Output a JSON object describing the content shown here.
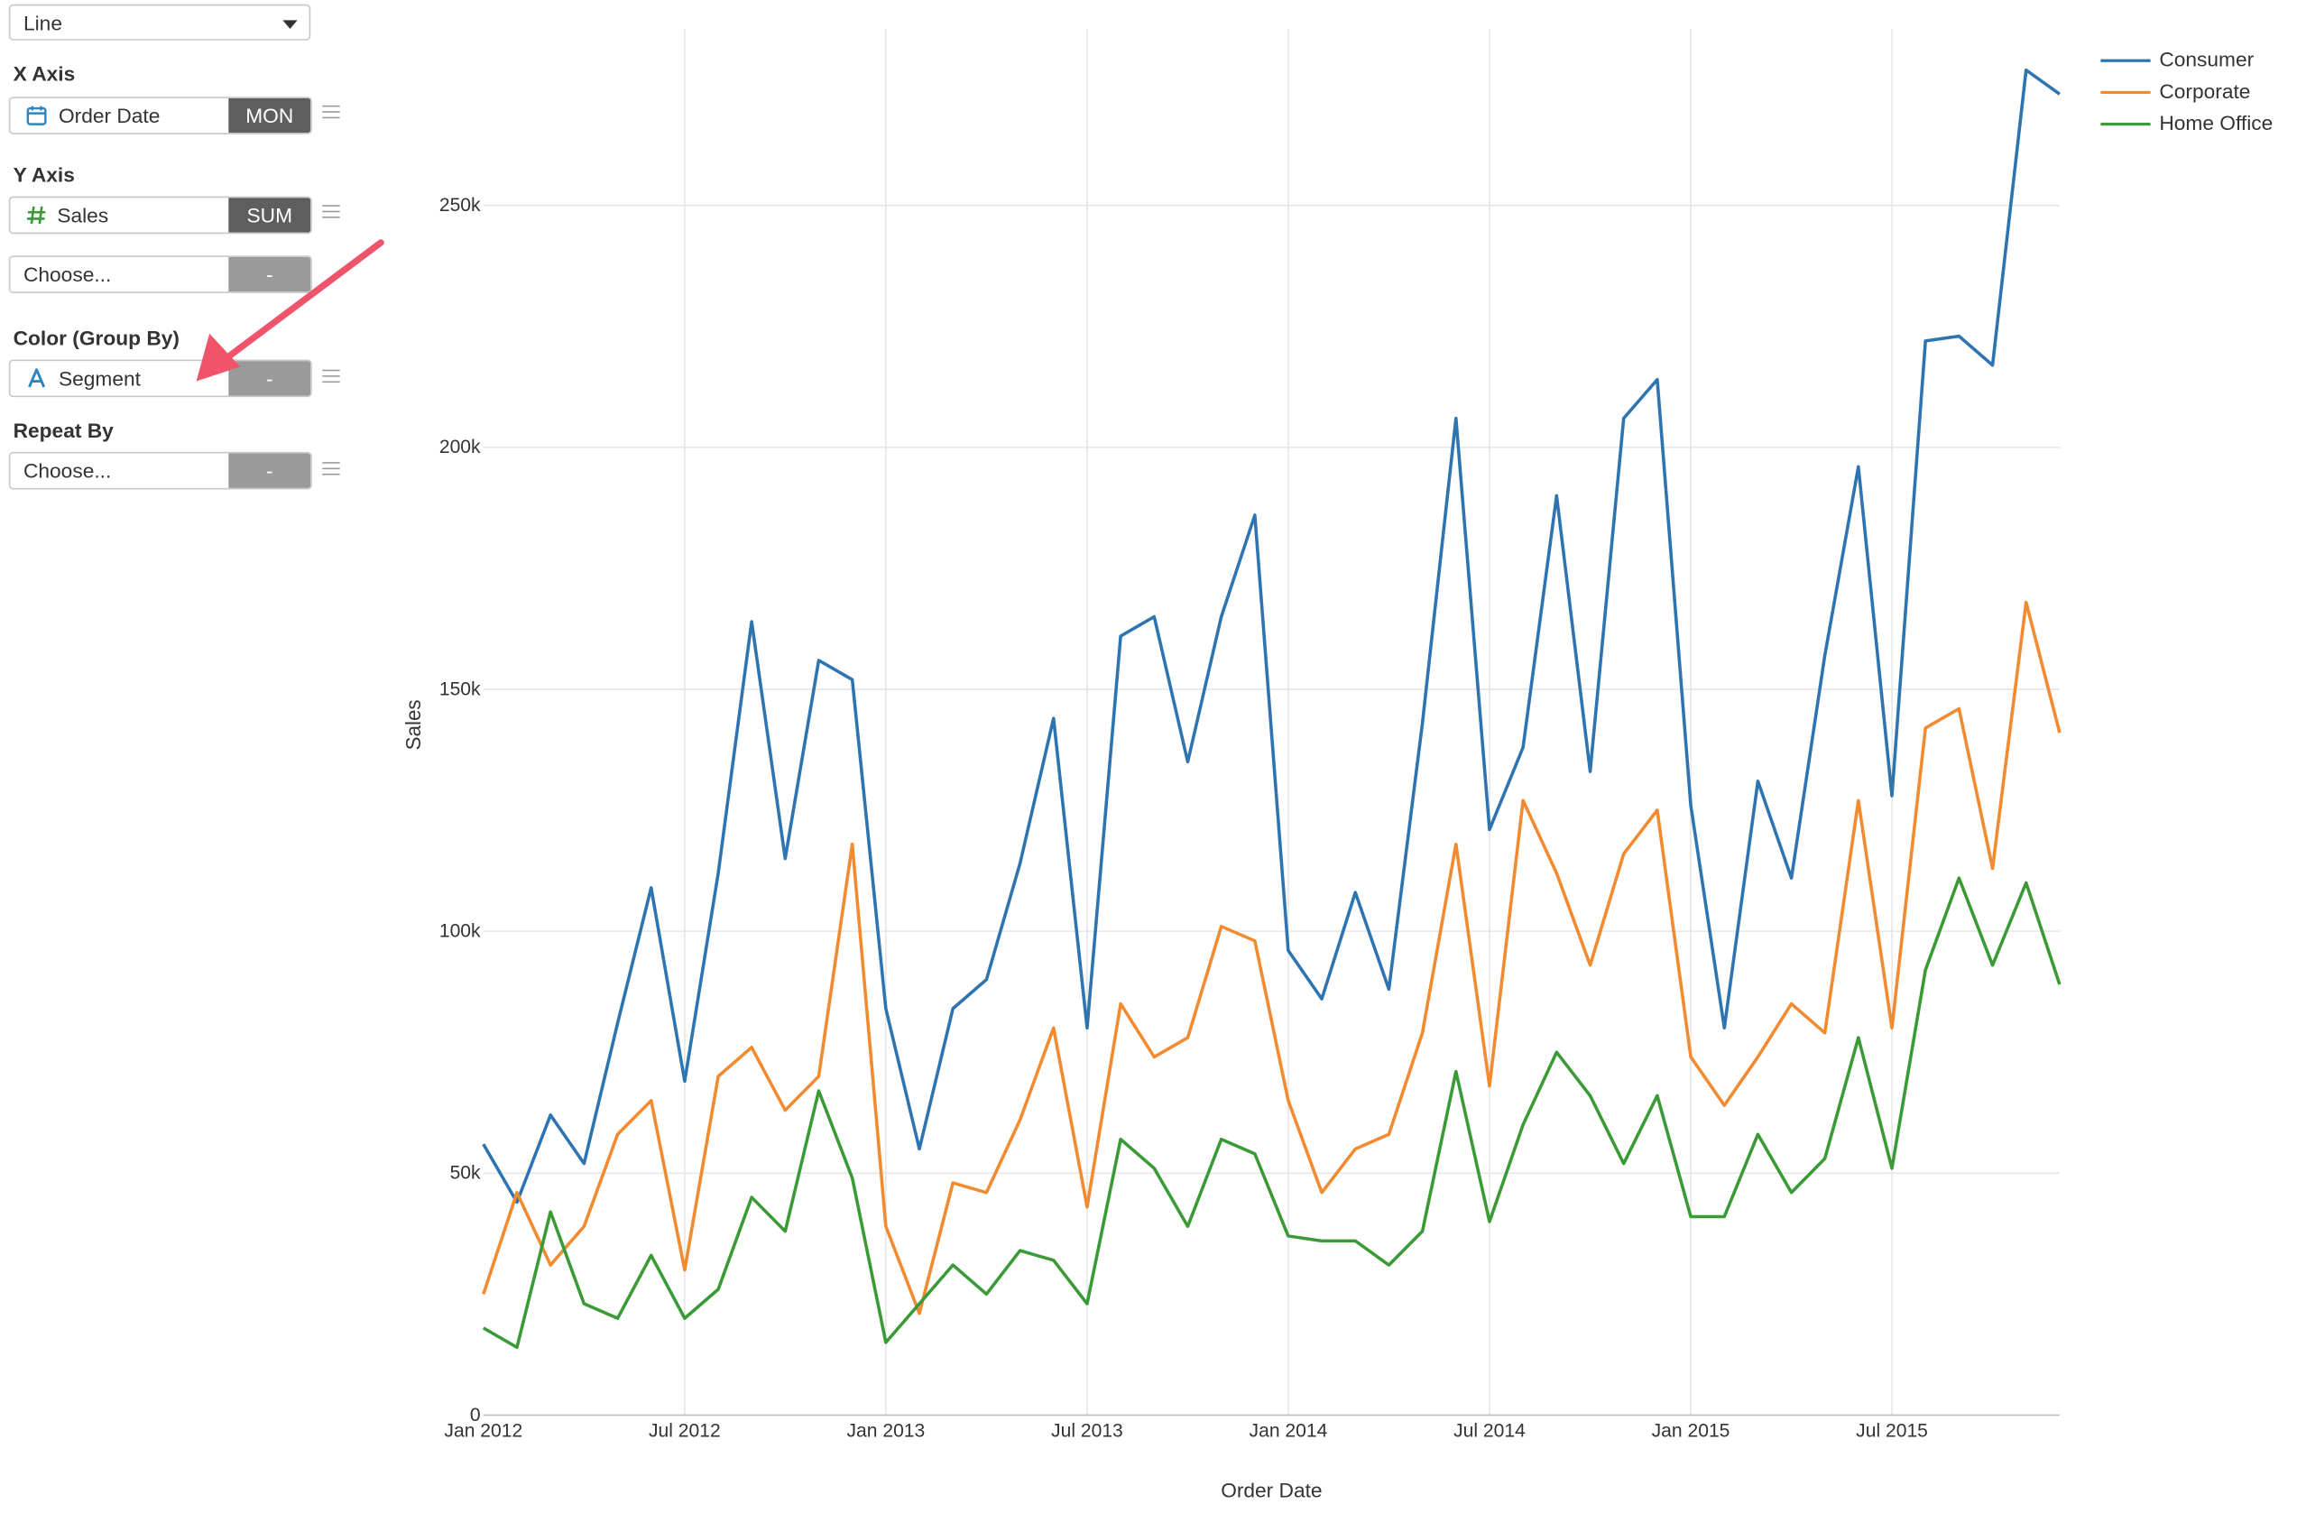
{
  "chart_type_selector": {
    "value": "Line"
  },
  "x_axis": {
    "section_label": "X Axis",
    "field": {
      "icon": "calendar-icon",
      "label": "Order Date",
      "aggregation": "MON"
    }
  },
  "y_axis": {
    "section_label": "Y Axis",
    "fields": [
      {
        "icon": "number-hash-icon",
        "label": "Sales",
        "aggregation": "SUM"
      },
      {
        "label": "Choose...",
        "aggregation": "-"
      }
    ]
  },
  "color": {
    "section_label": "Color (Group By)",
    "field": {
      "icon": "text-type-icon",
      "label": "Segment",
      "aggregation": "-"
    }
  },
  "repeat_by": {
    "section_label": "Repeat By",
    "field": {
      "label": "Choose...",
      "aggregation": "-"
    }
  },
  "annotation": {
    "icon": "arrow-annotation-icon",
    "color": "#f0546a",
    "points_to": "Segment"
  },
  "chart_data": {
    "type": "line",
    "xlabel": "Order Date",
    "ylabel": "Sales",
    "ylim": [
      0,
      285000
    ],
    "xlim": [
      "2012-01",
      "2015-12"
    ],
    "grid": true,
    "legend_position": "top-right",
    "x_tick_labels": [
      "Jan 2012",
      "Jul 2012",
      "Jan 2013",
      "Jul 2013",
      "Jan 2014",
      "Jul 2014",
      "Jan 2015",
      "Jul 2015"
    ],
    "x_tick_months": [
      "2012-01",
      "2012-07",
      "2013-01",
      "2013-07",
      "2014-01",
      "2014-07",
      "2015-01",
      "2015-07"
    ],
    "y_tick_labels": [
      "0",
      "50k",
      "100k",
      "150k",
      "200k",
      "250k"
    ],
    "y_tick_values": [
      0,
      50000,
      100000,
      150000,
      200000,
      250000
    ],
    "x": [
      "2012-01",
      "2012-02",
      "2012-03",
      "2012-04",
      "2012-05",
      "2012-06",
      "2012-07",
      "2012-08",
      "2012-09",
      "2012-10",
      "2012-11",
      "2012-12",
      "2013-01",
      "2013-02",
      "2013-03",
      "2013-04",
      "2013-05",
      "2013-06",
      "2013-07",
      "2013-08",
      "2013-09",
      "2013-10",
      "2013-11",
      "2013-12",
      "2014-01",
      "2014-02",
      "2014-03",
      "2014-04",
      "2014-05",
      "2014-06",
      "2014-07",
      "2014-08",
      "2014-09",
      "2014-10",
      "2014-11",
      "2014-12",
      "2015-01",
      "2015-02",
      "2015-03",
      "2015-04",
      "2015-05",
      "2015-06",
      "2015-07",
      "2015-08",
      "2015-09",
      "2015-10",
      "2015-11",
      "2015-12"
    ],
    "series": [
      {
        "name": "Consumer",
        "color": "#2e74b0",
        "values": [
          56000,
          44000,
          62000,
          52000,
          81000,
          109000,
          69000,
          112000,
          164000,
          115000,
          156000,
          152000,
          84000,
          55000,
          84000,
          90000,
          114000,
          144000,
          80000,
          161000,
          165000,
          135000,
          165000,
          186000,
          96000,
          86000,
          108000,
          88000,
          143000,
          206000,
          121000,
          138000,
          190000,
          133000,
          206000,
          214000,
          126000,
          80000,
          131000,
          111000,
          157000,
          196000,
          128000,
          222000,
          223000,
          217000,
          278000,
          273000
        ]
      },
      {
        "name": "Corporate",
        "color": "#f28a30",
        "values": [
          25000,
          46000,
          31000,
          39000,
          58000,
          65000,
          30000,
          70000,
          76000,
          63000,
          70000,
          118000,
          39000,
          21000,
          48000,
          46000,
          61000,
          80000,
          43000,
          85000,
          74000,
          78000,
          101000,
          98000,
          65000,
          46000,
          55000,
          58000,
          79000,
          118000,
          68000,
          127000,
          112000,
          93000,
          116000,
          125000,
          74000,
          64000,
          74000,
          85000,
          79000,
          127000,
          80000,
          142000,
          146000,
          113000,
          168000,
          141000
        ]
      },
      {
        "name": "Home Office",
        "color": "#3a9a35",
        "values": [
          18000,
          14000,
          42000,
          23000,
          20000,
          33000,
          20000,
          26000,
          45000,
          38000,
          67000,
          49000,
          15000,
          23000,
          31000,
          25000,
          34000,
          32000,
          23000,
          57000,
          51000,
          39000,
          57000,
          54000,
          37000,
          36000,
          36000,
          31000,
          38000,
          71000,
          40000,
          60000,
          75000,
          66000,
          52000,
          66000,
          41000,
          41000,
          58000,
          46000,
          53000,
          78000,
          51000,
          92000,
          111000,
          93000,
          110000,
          89000
        ]
      }
    ]
  }
}
